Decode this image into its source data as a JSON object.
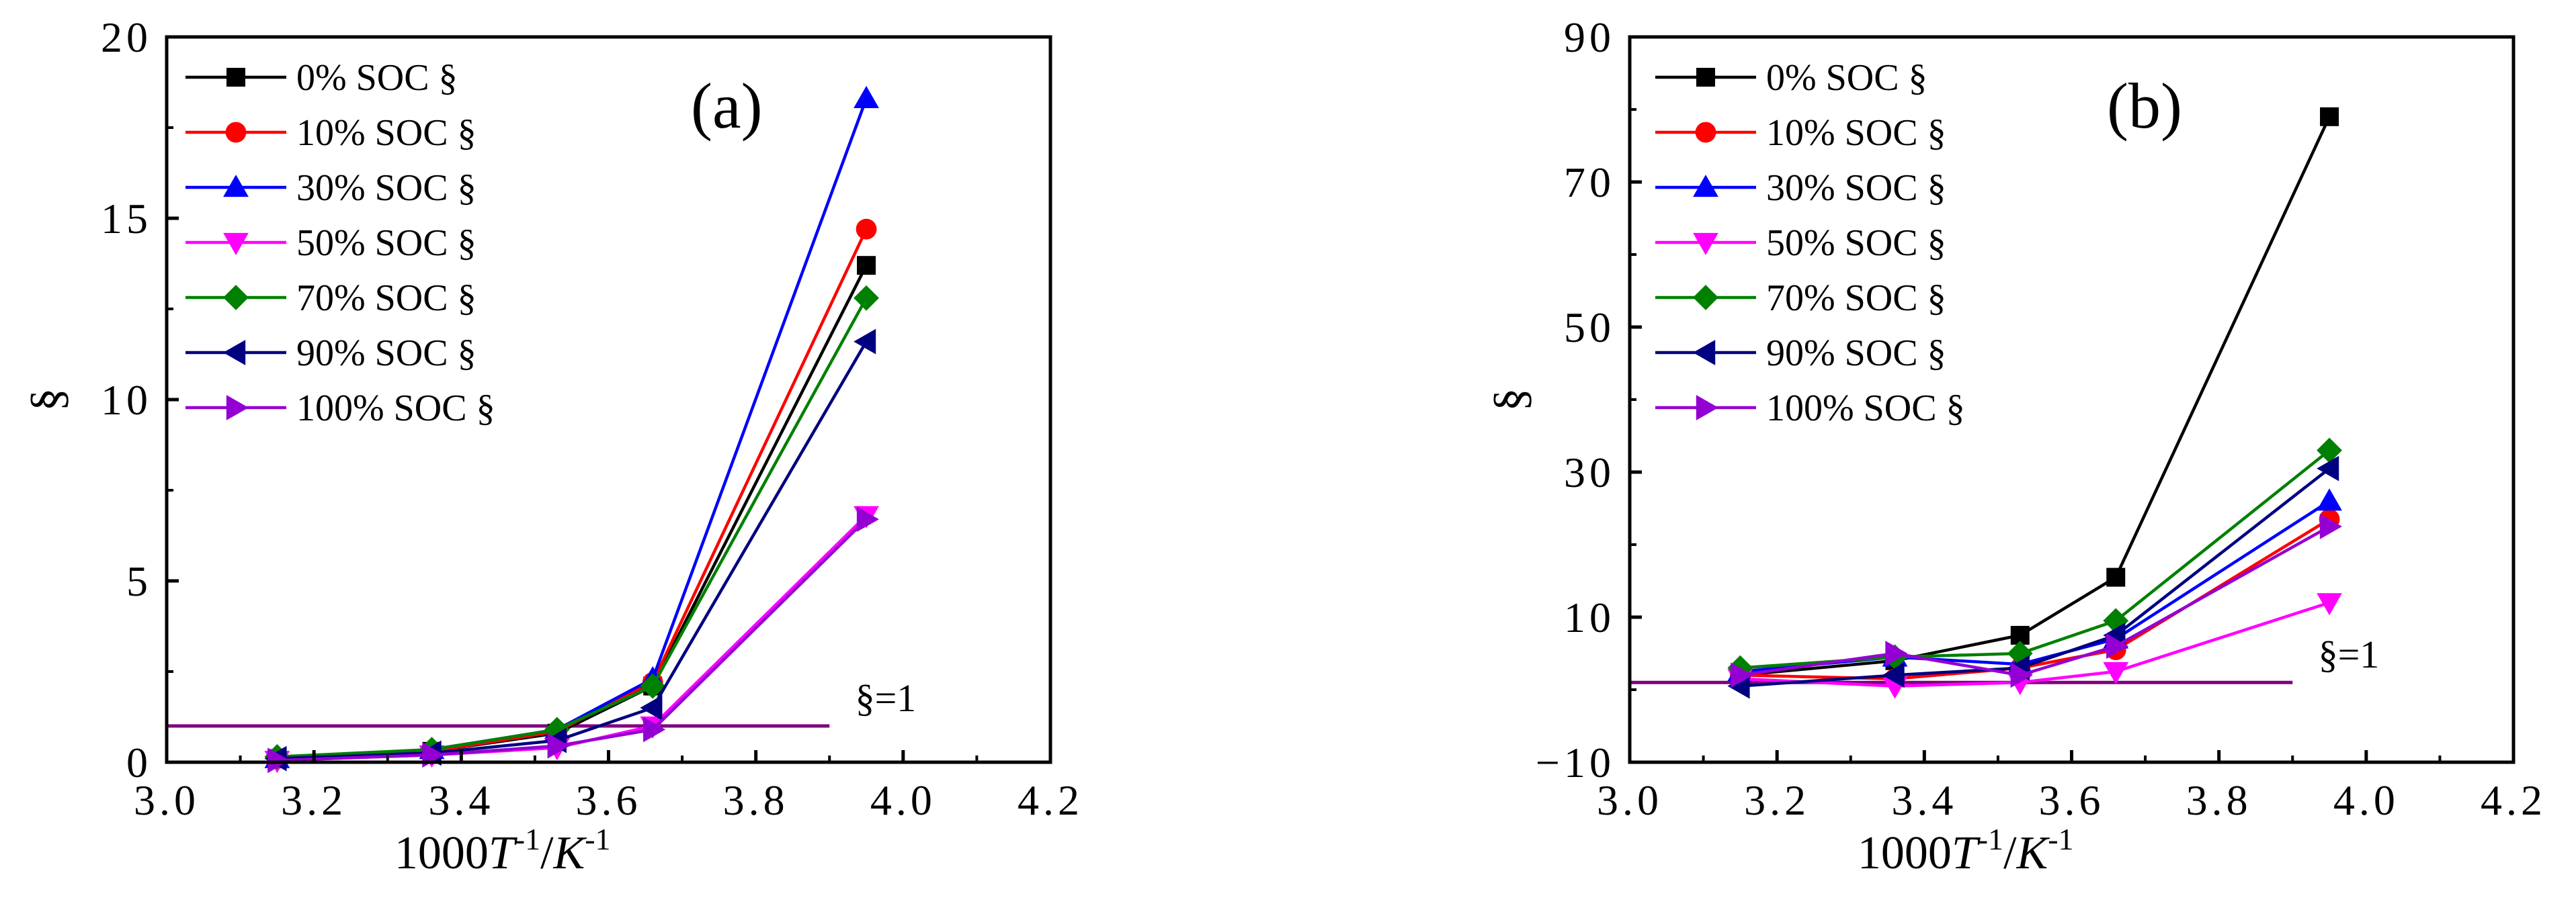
{
  "chart_data": [
    {
      "type": "line",
      "panel_label": "(a)",
      "xlabel_parts": [
        "1000",
        "T",
        "-1",
        "/",
        "K",
        "-1"
      ],
      "ylabel": "§",
      "xlim": [
        3.0,
        4.2
      ],
      "ylim": [
        0,
        20
      ],
      "x_ticks": [
        3.0,
        3.2,
        3.4,
        3.6,
        3.8,
        4.0,
        4.2
      ],
      "x_tick_labels": [
        "3.0",
        "3.2",
        "3.4",
        "3.6",
        "3.8",
        "4.0",
        "4.2"
      ],
      "y_ticks": [
        0,
        5,
        10,
        15,
        20
      ],
      "y_tick_labels": [
        "0",
        "5",
        "10",
        "15",
        "20"
      ],
      "legend_position": "top-left",
      "reference_line": {
        "y": 1,
        "label": "§=1",
        "color": "#800080"
      },
      "series": [
        {
          "name": "0% SOC §",
          "color": "#000000",
          "marker": "square",
          "x": [
            3.15,
            3.36,
            3.53,
            3.66,
            3.95
          ],
          "y": [
            0.1,
            0.3,
            0.8,
            2.1,
            13.7
          ]
        },
        {
          "name": "10% SOC §",
          "color": "#ff0000",
          "marker": "circle",
          "x": [
            3.15,
            3.36,
            3.53,
            3.66,
            3.95
          ],
          "y": [
            0.1,
            0.3,
            0.85,
            2.2,
            14.7
          ]
        },
        {
          "name": "30% SOC §",
          "color": "#0000ff",
          "marker": "triangle-up",
          "x": [
            3.15,
            3.36,
            3.53,
            3.66,
            3.95
          ],
          "y": [
            0.1,
            0.35,
            0.9,
            2.3,
            18.3
          ]
        },
        {
          "name": "50% SOC §",
          "color": "#ff00ff",
          "marker": "triangle-down",
          "x": [
            3.15,
            3.36,
            3.53,
            3.66,
            3.95
          ],
          "y": [
            0.05,
            0.2,
            0.4,
            1.0,
            6.8
          ]
        },
        {
          "name": "70% SOC §",
          "color": "#008000",
          "marker": "diamond",
          "x": [
            3.15,
            3.36,
            3.53,
            3.66,
            3.95
          ],
          "y": [
            0.15,
            0.35,
            0.9,
            2.1,
            12.8
          ]
        },
        {
          "name": "90% SOC §",
          "color": "#000080",
          "marker": "triangle-left",
          "x": [
            3.15,
            3.36,
            3.53,
            3.66,
            3.95
          ],
          "y": [
            0.1,
            0.25,
            0.6,
            1.5,
            11.6
          ]
        },
        {
          "name": "100% SOC §",
          "color": "#9400d3",
          "marker": "triangle-right",
          "x": [
            3.15,
            3.36,
            3.53,
            3.66,
            3.95
          ],
          "y": [
            0.05,
            0.2,
            0.45,
            0.9,
            6.7
          ]
        }
      ]
    },
    {
      "type": "line",
      "panel_label": "(b)",
      "xlabel_parts": [
        "1000",
        "T",
        "-1",
        "/",
        "K",
        "-1"
      ],
      "ylabel": "§",
      "xlim": [
        3.0,
        4.2
      ],
      "ylim": [
        -10,
        90
      ],
      "x_ticks": [
        3.0,
        3.2,
        3.4,
        3.6,
        3.8,
        4.0,
        4.2
      ],
      "x_tick_labels": [
        "3.0",
        "3.2",
        "3.4",
        "3.6",
        "3.8",
        "4.0",
        "4.2"
      ],
      "y_ticks": [
        -10,
        10,
        30,
        50,
        70,
        90
      ],
      "y_tick_labels": [
        "−10",
        "10",
        "30",
        "50",
        "70",
        "90"
      ],
      "legend_position": "top-left",
      "reference_line": {
        "y": 1,
        "label": "§=1",
        "color": "#800080"
      },
      "series": [
        {
          "name": "0% SOC §",
          "color": "#000000",
          "marker": "square",
          "x": [
            3.15,
            3.36,
            3.53,
            3.66,
            3.95
          ],
          "y": [
            2,
            4,
            7.5,
            15.5,
            79
          ]
        },
        {
          "name": "10% SOC §",
          "color": "#ff0000",
          "marker": "circle",
          "x": [
            3.15,
            3.36,
            3.53,
            3.66,
            3.95
          ],
          "y": [
            2,
            1.5,
            3,
            5.5,
            23.5
          ]
        },
        {
          "name": "30% SOC §",
          "color": "#0000ff",
          "marker": "triangle-up",
          "x": [
            3.15,
            3.36,
            3.53,
            3.66,
            3.95
          ],
          "y": [
            2.5,
            4.5,
            3.5,
            7,
            26
          ]
        },
        {
          "name": "50% SOC §",
          "color": "#ff00ff",
          "marker": "triangle-down",
          "x": [
            3.15,
            3.36,
            3.53,
            3.66,
            3.95
          ],
          "y": [
            1.5,
            0.5,
            1,
            2.5,
            12
          ]
        },
        {
          "name": "70% SOC §",
          "color": "#008000",
          "marker": "diamond",
          "x": [
            3.15,
            3.36,
            3.53,
            3.66,
            3.95
          ],
          "y": [
            3,
            4.5,
            5,
            9.5,
            33
          ]
        },
        {
          "name": "90% SOC §",
          "color": "#000080",
          "marker": "triangle-left",
          "x": [
            3.15,
            3.36,
            3.53,
            3.66,
            3.95
          ],
          "y": [
            0.5,
            2,
            3,
            7.5,
            30.5
          ]
        },
        {
          "name": "100% SOC §",
          "color": "#9400d3",
          "marker": "triangle-right",
          "x": [
            3.15,
            3.36,
            3.53,
            3.66,
            3.95
          ],
          "y": [
            2,
            5,
            2,
            6,
            22.5
          ]
        }
      ]
    }
  ]
}
